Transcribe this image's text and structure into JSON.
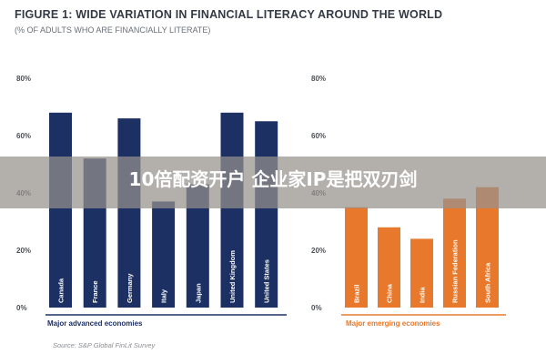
{
  "chart_data": [
    {
      "type": "bar",
      "title": "FIGURE 1: WIDE VARIATION IN FINANCIAL LITERACY AROUND THE WORLD",
      "subtitle": "(% OF ADULTS WHO ARE FINANCIALLY LITERATE)",
      "xlabel": "Major advanced economies",
      "ylabel": "",
      "yticks": [
        "0%",
        "20%",
        "40%",
        "60%",
        "80%"
      ],
      "ylim": [
        0,
        80
      ],
      "categories": [
        "Canada",
        "France",
        "Germany",
        "Italy",
        "Japan",
        "United Kingdom",
        "United States"
      ],
      "values": [
        68,
        52,
        66,
        37,
        43,
        68,
        65
      ],
      "color": "#1c3064",
      "grid": false
    },
    {
      "type": "bar",
      "xlabel": "Major emerging economies",
      "ylabel": "",
      "yticks": [
        "0%",
        "20%",
        "40%",
        "60%",
        "80%"
      ],
      "ylim": [
        0,
        80
      ],
      "categories": [
        "Brazil",
        "China",
        "India",
        "Russian Federation",
        "South Africa"
      ],
      "values": [
        35,
        28,
        24,
        38,
        42
      ],
      "color": "#e8782b",
      "grid": false
    }
  ],
  "source": "Source: S&P Global FinLit Survey",
  "overlay": {
    "text": "10倍配资开户 企业家IP是把双刃剑"
  }
}
